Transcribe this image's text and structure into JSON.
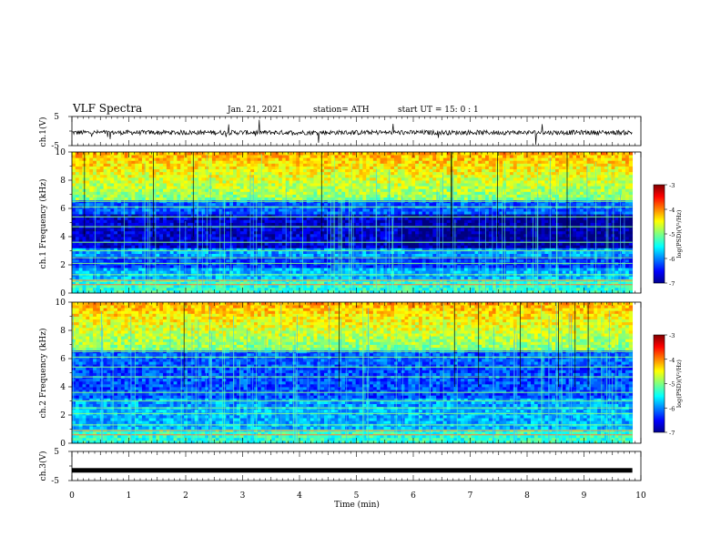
{
  "header": {
    "title": "VLF Spectra",
    "date": "Jan. 21, 2021",
    "station": "station= ATH",
    "start": "start  UT =   15: 0  : 1"
  },
  "chart_data": [
    {
      "type": "line",
      "id": "ch1-waveform",
      "ylabel": "ch.1(V)",
      "ylim": [
        -5,
        5
      ],
      "yticks": [
        "5",
        "-5"
      ],
      "x_range_min": [
        0,
        9.85
      ],
      "description_level": -0.5
    },
    {
      "type": "heatmap",
      "id": "ch1-spectrogram",
      "ylabel": "ch.1  Frequency (kHz)",
      "ylim": [
        0,
        10
      ],
      "yticks": [
        "0",
        "2",
        "4",
        "6",
        "8",
        "10"
      ],
      "colorbar": {
        "label": "log(PSD)(V²/Hz)",
        "range": [
          -7,
          -3
        ],
        "ticks": [
          "-3",
          "-4",
          "-5",
          "-6",
          "-7"
        ]
      }
    },
    {
      "type": "heatmap",
      "id": "ch2-spectrogram",
      "ylabel": "ch.2  Frequency (kHz)",
      "ylim": [
        0,
        10
      ],
      "yticks": [
        "0",
        "2",
        "4",
        "6",
        "8",
        "10"
      ],
      "colorbar": {
        "label": "log(PSD)(V²/Hz)",
        "range": [
          -7,
          -3
        ],
        "ticks": [
          "-3",
          "-4",
          "-5",
          "-6",
          "-7"
        ]
      }
    },
    {
      "type": "line",
      "id": "ch3-waveform",
      "ylabel": "ch.3(V)",
      "ylim": [
        -5,
        5
      ],
      "yticks": [
        "5",
        "-5"
      ],
      "level": -1.5
    }
  ],
  "xaxis": {
    "label": "Time  (min)",
    "xlim": [
      0,
      10
    ],
    "ticks": [
      "0",
      "1",
      "2",
      "3",
      "4",
      "5",
      "6",
      "7",
      "8",
      "9",
      "10"
    ]
  },
  "colors": {
    "jet_low": "#000080",
    "jet_mid": "#00ff80",
    "jet_high": "#800000"
  }
}
